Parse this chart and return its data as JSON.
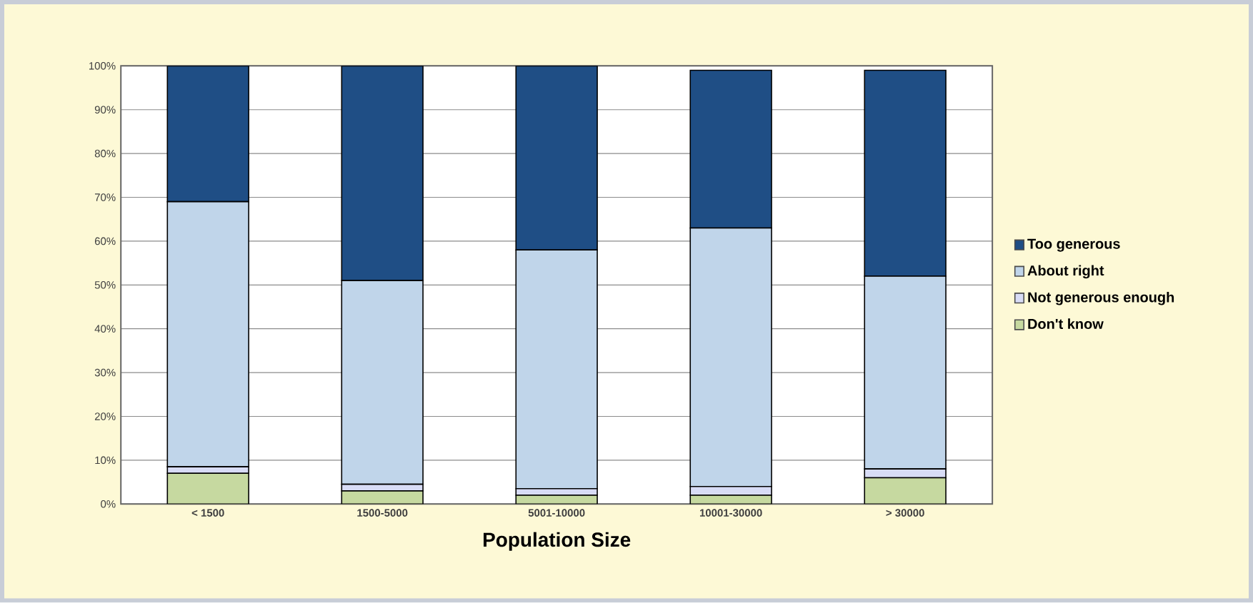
{
  "chart_data": {
    "type": "bar",
    "stacked": true,
    "xlabel": "Population Size",
    "categories": [
      "< 1500",
      "1500-5000",
      "5001-10000",
      "10001-30000",
      "> 30000"
    ],
    "series": [
      {
        "name": "Don't know",
        "color": "#c6d9a0",
        "values": [
          7,
          3,
          2,
          2,
          6
        ]
      },
      {
        "name": "Not generous enough",
        "color": "#d8dcf6",
        "values": [
          1.5,
          1.5,
          1.5,
          2,
          2
        ]
      },
      {
        "name": "About right",
        "color": "#c0d5ea",
        "values": [
          60.5,
          46.5,
          54.5,
          59,
          44
        ]
      },
      {
        "name": "Too generous",
        "color": "#1f4e85",
        "values": [
          31,
          49,
          42,
          36,
          47
        ]
      }
    ],
    "ylim": [
      0,
      100
    ],
    "yticks": [
      {
        "value": 0,
        "label": "0%"
      },
      {
        "value": 10,
        "label": "10%"
      },
      {
        "value": 20,
        "label": "20%"
      },
      {
        "value": 30,
        "label": "30%"
      },
      {
        "value": 40,
        "label": "40%"
      },
      {
        "value": 50,
        "label": "50%"
      },
      {
        "value": 60,
        "label": "60%"
      },
      {
        "value": 70,
        "label": "70%"
      },
      {
        "value": 80,
        "label": "80%"
      },
      {
        "value": 90,
        "label": "90%"
      },
      {
        "value": 100,
        "label": "100%"
      }
    ],
    "grid": "y",
    "legend": "right"
  }
}
